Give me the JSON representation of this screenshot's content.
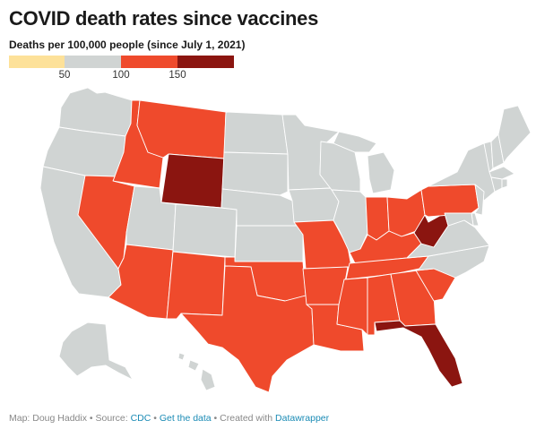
{
  "header": {
    "title": "COVID death rates since vaccines",
    "subtitle": "Deaths per 100,000 people (since July 1, 2021)"
  },
  "legend": {
    "bins": [
      {
        "color": "#fde199"
      },
      {
        "color": "#d0d4d3"
      },
      {
        "color": "#ef4a2c"
      },
      {
        "color": "#8b1510"
      }
    ],
    "ticks": [
      "50",
      "100",
      "150"
    ],
    "tick_values": [
      50,
      100,
      150
    ],
    "domain": [
      0,
      200
    ]
  },
  "map": {
    "fills": {
      "gray": "#d0d4d3",
      "red": "#ef4a2c",
      "darkred": "#8b1510"
    },
    "state_categories": {
      "WA": "gray",
      "OR": "gray",
      "CA": "gray",
      "ID": "red",
      "NV": "red",
      "MT": "red",
      "WY": "darkred",
      "UT": "gray",
      "AZ": "red",
      "CO": "gray",
      "NM": "red",
      "ND": "gray",
      "SD": "gray",
      "NE": "gray",
      "KS": "gray",
      "OK": "red",
      "TX": "red",
      "MN": "gray",
      "IA": "gray",
      "MO": "red",
      "AR": "red",
      "LA": "red",
      "WI": "gray",
      "IL": "gray",
      "MI": "gray",
      "IN": "red",
      "OH": "red",
      "KY": "red",
      "TN": "red",
      "MS": "red",
      "AL": "red",
      "GA": "red",
      "FL": "darkred",
      "SC": "red",
      "NC": "gray",
      "VA": "gray",
      "WV": "darkred",
      "PA": "red",
      "NY": "gray",
      "ME": "gray",
      "NH": "gray",
      "VT": "gray",
      "MA": "gray",
      "CT": "gray",
      "RI": "gray",
      "NJ": "gray",
      "DE": "gray",
      "MD": "gray",
      "AK": "gray",
      "HI": "gray"
    }
  },
  "footer": {
    "prefix": "Map: Doug Haddix • Source: ",
    "source_link": "CDC",
    "sep1": " • ",
    "data_link": "Get the data",
    "sep2": " • Created with ",
    "tool_link": "Datawrapper"
  }
}
